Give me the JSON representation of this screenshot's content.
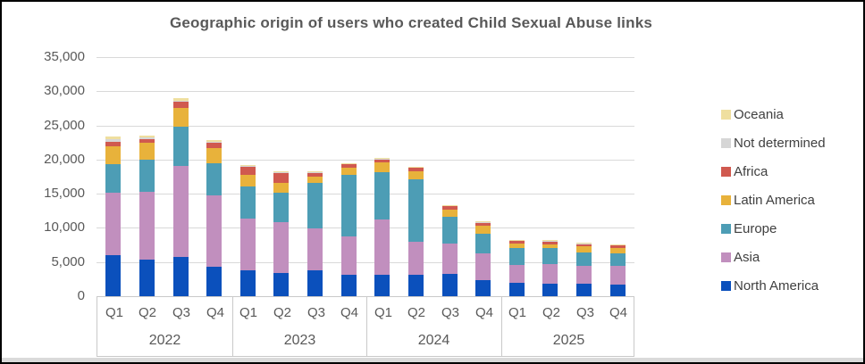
{
  "chart_data": {
    "type": "bar",
    "stacked": true,
    "title": "Geographic origin of users who created Child Sexual Abuse links",
    "years": [
      "2022",
      "2023",
      "2024",
      "2025"
    ],
    "quarters": [
      "Q1",
      "Q2",
      "Q3",
      "Q4"
    ],
    "categories": [
      "Q1 2022",
      "Q2 2022",
      "Q3 2022",
      "Q4 2022",
      "Q1 2023",
      "Q2 2023",
      "Q3 2023",
      "Q4 2023",
      "Q1 2024",
      "Q2 2024",
      "Q3 2024",
      "Q4 2024",
      "Q1 2025",
      "Q2 2025",
      "Q3 2025",
      "Q4 2025"
    ],
    "series": [
      {
        "name": "North America",
        "color": "#0b50bc",
        "values": [
          6000,
          5300,
          5750,
          4250,
          3850,
          3400,
          3850,
          3100,
          3150,
          3150,
          3300,
          2400,
          1900,
          1800,
          1850,
          1650
        ]
      },
      {
        "name": "Asia",
        "color": "#c18fbe",
        "values": [
          9100,
          10000,
          13350,
          10450,
          7450,
          7400,
          6050,
          5600,
          8050,
          4800,
          4400,
          3900,
          2700,
          2900,
          2550,
          2750
        ]
      },
      {
        "name": "Europe",
        "color": "#4d9db5",
        "values": [
          4200,
          4700,
          5650,
          4800,
          4800,
          4400,
          6650,
          9100,
          6900,
          9150,
          3950,
          2900,
          2400,
          2300,
          2000,
          1850
        ]
      },
      {
        "name": "Latin America",
        "color": "#e8b23b",
        "values": [
          2600,
          2500,
          2850,
          2200,
          1600,
          1400,
          1000,
          1000,
          1500,
          1200,
          1050,
          1150,
          700,
          600,
          900,
          800
        ]
      },
      {
        "name": "Africa",
        "color": "#d0594f",
        "values": [
          700,
          500,
          900,
          800,
          1200,
          1500,
          550,
          600,
          450,
          550,
          550,
          450,
          450,
          500,
          400,
          450
        ]
      },
      {
        "name": "Not determined",
        "color": "#d6d6d6",
        "values": [
          350,
          250,
          150,
          150,
          150,
          100,
          100,
          50,
          100,
          50,
          50,
          75,
          50,
          50,
          50,
          50
        ]
      },
      {
        "name": "Oceania",
        "color": "#efdf9f",
        "values": [
          400,
          250,
          300,
          150,
          150,
          100,
          100,
          50,
          150,
          100,
          50,
          75,
          50,
          50,
          50,
          50
        ]
      }
    ],
    "legend_order_top_to_bottom": [
      "Oceania",
      "Not determined",
      "Africa",
      "Latin America",
      "Europe",
      "Asia",
      "North America"
    ],
    "legend_position": "right",
    "ylim": [
      0,
      35000
    ],
    "ytick_interval": 5000,
    "ytick_labels": [
      "0",
      "5,000",
      "10,000",
      "15,000",
      "20,000",
      "25,000",
      "30,000",
      "35,000"
    ],
    "grid": "horizontal"
  }
}
